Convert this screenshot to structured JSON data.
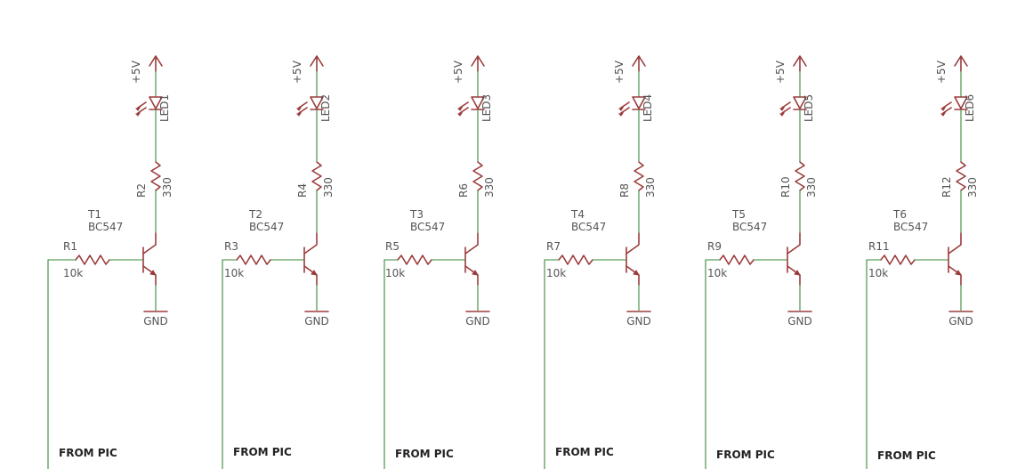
{
  "colors": {
    "symbol": "#9b3b3b",
    "wire": "#3a8a3a",
    "label": "#555555",
    "background": "#ffffff"
  },
  "stages": [
    {
      "led": "LED1",
      "res_top": "R2",
      "res_top_value": "330",
      "transistor": "T1",
      "transistor_type": "BC547",
      "res_base": "R1",
      "res_base_value": "10k",
      "supply": "+5V",
      "ground": "GND",
      "input": "FROM PIC"
    },
    {
      "led": "LED2",
      "res_top": "R4",
      "res_top_value": "330",
      "transistor": "T2",
      "transistor_type": "BC547",
      "res_base": "R3",
      "res_base_value": "10k",
      "supply": "+5V",
      "ground": "GND",
      "input": "FROM PIC"
    },
    {
      "led": "LED3",
      "res_top": "R6",
      "res_top_value": "330",
      "transistor": "T3",
      "transistor_type": "BC547",
      "res_base": "R5",
      "res_base_value": "10k",
      "supply": "+5V",
      "ground": "GND",
      "input": "FROM PIC"
    },
    {
      "led": "LED4",
      "res_top": "R8",
      "res_top_value": "330",
      "transistor": "T4",
      "transistor_type": "BC547",
      "res_base": "R7",
      "res_base_value": "10k",
      "supply": "+5V",
      "ground": "GND",
      "input": "FROM PIC"
    },
    {
      "led": "LED5",
      "res_top": "R10",
      "res_top_value": "330",
      "transistor": "T5",
      "transistor_type": "BC547",
      "res_base": "R9",
      "res_base_value": "10k",
      "supply": "+5V",
      "ground": "GND",
      "input": "FROM PIC"
    },
    {
      "led": "LED6",
      "res_top": "R12",
      "res_top_value": "330",
      "transistor": "T6",
      "transistor_type": "BC547",
      "res_base": "R11",
      "res_base_value": "10k",
      "supply": "+5V",
      "ground": "GND",
      "input": "FROM PIC"
    }
  ]
}
